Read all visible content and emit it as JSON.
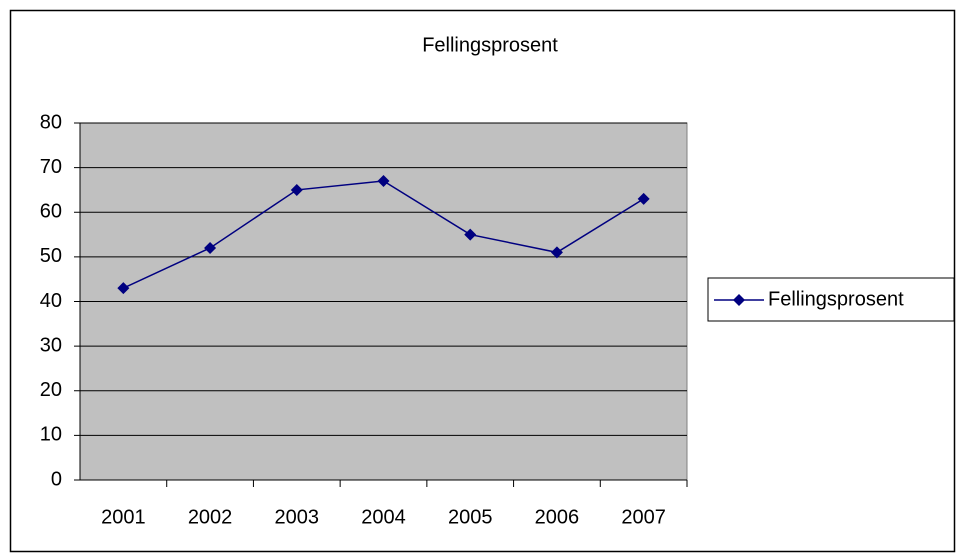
{
  "chart_data": {
    "type": "line",
    "title": "Fellingsprosent",
    "categories": [
      "2001",
      "2002",
      "2003",
      "2004",
      "2005",
      "2006",
      "2007"
    ],
    "series": [
      {
        "name": "Fellingsprosent",
        "color": "#000080",
        "values": [
          43,
          52,
          65,
          67,
          55,
          51,
          63
        ]
      }
    ],
    "ylim": [
      0,
      80
    ],
    "yticks": [
      0,
      10,
      20,
      30,
      40,
      50,
      60,
      70,
      80
    ],
    "grid": true,
    "legend": "right"
  }
}
